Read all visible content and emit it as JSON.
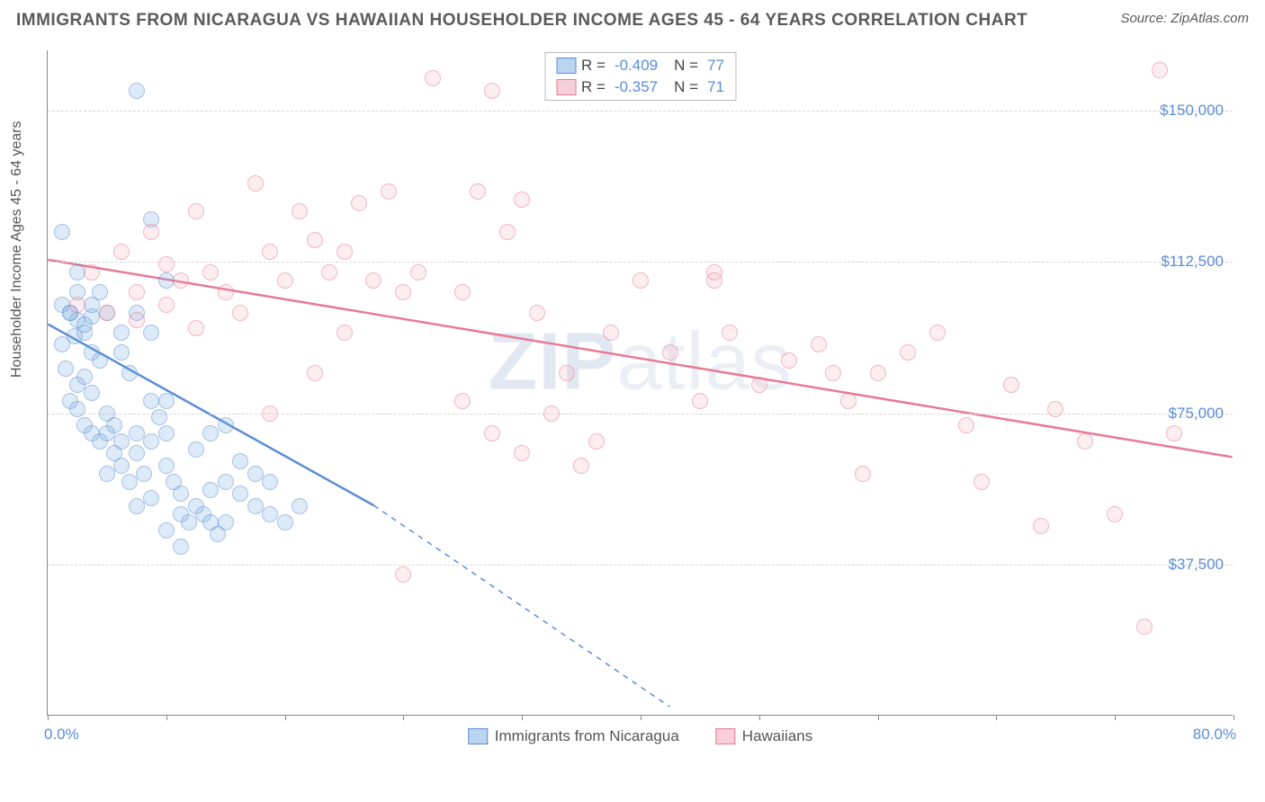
{
  "header": {
    "title": "IMMIGRANTS FROM NICARAGUA VS HAWAIIAN HOUSEHOLDER INCOME AGES 45 - 64 YEARS CORRELATION CHART",
    "source": "Source: ZipAtlas.com"
  },
  "chart": {
    "type": "scatter",
    "ylabel": "Householder Income Ages 45 - 64 years",
    "xlim": [
      0,
      80
    ],
    "ylim": [
      0,
      165000
    ],
    "x_min_label": "0.0%",
    "x_max_label": "80.0%",
    "yticks": [
      37500,
      75000,
      112500,
      150000
    ],
    "ytick_labels": [
      "$37,500",
      "$75,000",
      "$112,500",
      "$150,000"
    ],
    "xtick_positions": [
      0,
      8,
      16,
      24,
      32,
      40,
      48,
      56,
      64,
      72,
      80
    ],
    "background_color": "#ffffff",
    "grid_color": "#d5d5d5",
    "axis_color": "#888888",
    "label_color": "#5b8dd6",
    "series": [
      {
        "name": "Immigrants from Nicaragua",
        "color_fill": "#78aae1",
        "color_stroke": "#5b8dd6",
        "marker_radius": 9,
        "correlation_R": "-0.409",
        "correlation_N": "77",
        "trend": {
          "x1": 0,
          "y1": 97000,
          "x2_solid": 22,
          "y2_solid": 52000,
          "x2": 42,
          "y2": 2000,
          "stroke_width": 2.5
        },
        "points": [
          [
            1,
            102000
          ],
          [
            1.5,
            100000
          ],
          [
            2,
            98000
          ],
          [
            2,
            110000
          ],
          [
            2.5,
            95000
          ],
          [
            3,
            99000
          ],
          [
            3,
            90000
          ],
          [
            3.5,
            88000
          ],
          [
            1,
            92000
          ],
          [
            1.2,
            86000
          ],
          [
            2,
            82000
          ],
          [
            2.5,
            84000
          ],
          [
            3,
            80000
          ],
          [
            1.5,
            78000
          ],
          [
            2,
            76000
          ],
          [
            2.5,
            72000
          ],
          [
            3,
            70000
          ],
          [
            3.5,
            68000
          ],
          [
            4,
            75000
          ],
          [
            4,
            70000
          ],
          [
            4.5,
            72000
          ],
          [
            5,
            68000
          ],
          [
            5,
            90000
          ],
          [
            5.5,
            85000
          ],
          [
            6,
            70000
          ],
          [
            6,
            65000
          ],
          [
            6.5,
            60000
          ],
          [
            7,
            68000
          ],
          [
            7,
            78000
          ],
          [
            7.5,
            74000
          ],
          [
            8,
            70000
          ],
          [
            8,
            62000
          ],
          [
            8.5,
            58000
          ],
          [
            9,
            55000
          ],
          [
            9,
            50000
          ],
          [
            9.5,
            48000
          ],
          [
            10,
            52000
          ],
          [
            10.5,
            50000
          ],
          [
            11,
            48000
          ],
          [
            11,
            56000
          ],
          [
            11.5,
            45000
          ],
          [
            12,
            48000
          ],
          [
            12,
            58000
          ],
          [
            13,
            55000
          ],
          [
            13,
            63000
          ],
          [
            14,
            60000
          ],
          [
            14,
            52000
          ],
          [
            15,
            58000
          ],
          [
            15,
            50000
          ],
          [
            16,
            48000
          ],
          [
            17,
            52000
          ],
          [
            6,
            155000
          ],
          [
            7,
            123000
          ],
          [
            8,
            108000
          ],
          [
            1,
            120000
          ],
          [
            3.5,
            105000
          ],
          [
            4,
            100000
          ],
          [
            5,
            95000
          ],
          [
            2,
            105000
          ],
          [
            6,
            100000
          ],
          [
            7,
            95000
          ],
          [
            1.5,
            100000
          ],
          [
            8,
            46000
          ],
          [
            9,
            42000
          ],
          [
            4,
            60000
          ],
          [
            4.5,
            65000
          ],
          [
            5,
            62000
          ],
          [
            5.5,
            58000
          ],
          [
            10,
            66000
          ],
          [
            11,
            70000
          ],
          [
            12,
            72000
          ],
          [
            6,
            52000
          ],
          [
            7,
            54000
          ],
          [
            8,
            78000
          ],
          [
            3,
            102000
          ],
          [
            2.5,
            97000
          ],
          [
            1.8,
            94000
          ]
        ]
      },
      {
        "name": "Hawaiians",
        "color_fill": "#f0a0b4",
        "color_stroke": "#e77a95",
        "marker_radius": 9,
        "correlation_R": "-0.357",
        "correlation_N": "71",
        "trend": {
          "x1": 0,
          "y1": 113000,
          "x2_solid": 80,
          "y2_solid": 64000,
          "x2": 80,
          "y2": 64000,
          "stroke_width": 2.5
        },
        "points": [
          [
            3,
            110000
          ],
          [
            5,
            115000
          ],
          [
            6,
            105000
          ],
          [
            7,
            120000
          ],
          [
            8,
            112000
          ],
          [
            9,
            108000
          ],
          [
            10,
            125000
          ],
          [
            11,
            110000
          ],
          [
            12,
            105000
          ],
          [
            13,
            100000
          ],
          [
            14,
            132000
          ],
          [
            15,
            115000
          ],
          [
            16,
            108000
          ],
          [
            17,
            125000
          ],
          [
            18,
            118000
          ],
          [
            19,
            110000
          ],
          [
            20,
            115000
          ],
          [
            21,
            127000
          ],
          [
            22,
            108000
          ],
          [
            23,
            130000
          ],
          [
            24,
            105000
          ],
          [
            25,
            110000
          ],
          [
            26,
            158000
          ],
          [
            28,
            105000
          ],
          [
            29,
            130000
          ],
          [
            30,
            155000
          ],
          [
            31,
            120000
          ],
          [
            32,
            128000
          ],
          [
            33,
            100000
          ],
          [
            34,
            75000
          ],
          [
            35,
            85000
          ],
          [
            36,
            62000
          ],
          [
            37,
            68000
          ],
          [
            38,
            95000
          ],
          [
            40,
            108000
          ],
          [
            42,
            90000
          ],
          [
            44,
            78000
          ],
          [
            45,
            110000
          ],
          [
            46,
            95000
          ],
          [
            48,
            82000
          ],
          [
            50,
            88000
          ],
          [
            52,
            92000
          ],
          [
            53,
            85000
          ],
          [
            54,
            78000
          ],
          [
            55,
            60000
          ],
          [
            56,
            85000
          ],
          [
            58,
            90000
          ],
          [
            60,
            95000
          ],
          [
            62,
            72000
          ],
          [
            63,
            58000
          ],
          [
            65,
            82000
          ],
          [
            67,
            47000
          ],
          [
            68,
            76000
          ],
          [
            70,
            68000
          ],
          [
            72,
            50000
          ],
          [
            74,
            22000
          ],
          [
            75,
            160000
          ],
          [
            76,
            70000
          ],
          [
            24,
            35000
          ],
          [
            28,
            78000
          ],
          [
            30,
            70000
          ],
          [
            32,
            65000
          ],
          [
            15,
            75000
          ],
          [
            18,
            85000
          ],
          [
            20,
            95000
          ],
          [
            4,
            100000
          ],
          [
            6,
            98000
          ],
          [
            8,
            102000
          ],
          [
            10,
            96000
          ],
          [
            2,
            102000
          ],
          [
            45,
            108000
          ]
        ]
      }
    ],
    "legend_bottom": {
      "items": [
        {
          "swatch": "blue",
          "label": "Immigrants from Nicaragua"
        },
        {
          "swatch": "pink",
          "label": "Hawaiians"
        }
      ]
    },
    "watermark": "ZIPatlas"
  }
}
